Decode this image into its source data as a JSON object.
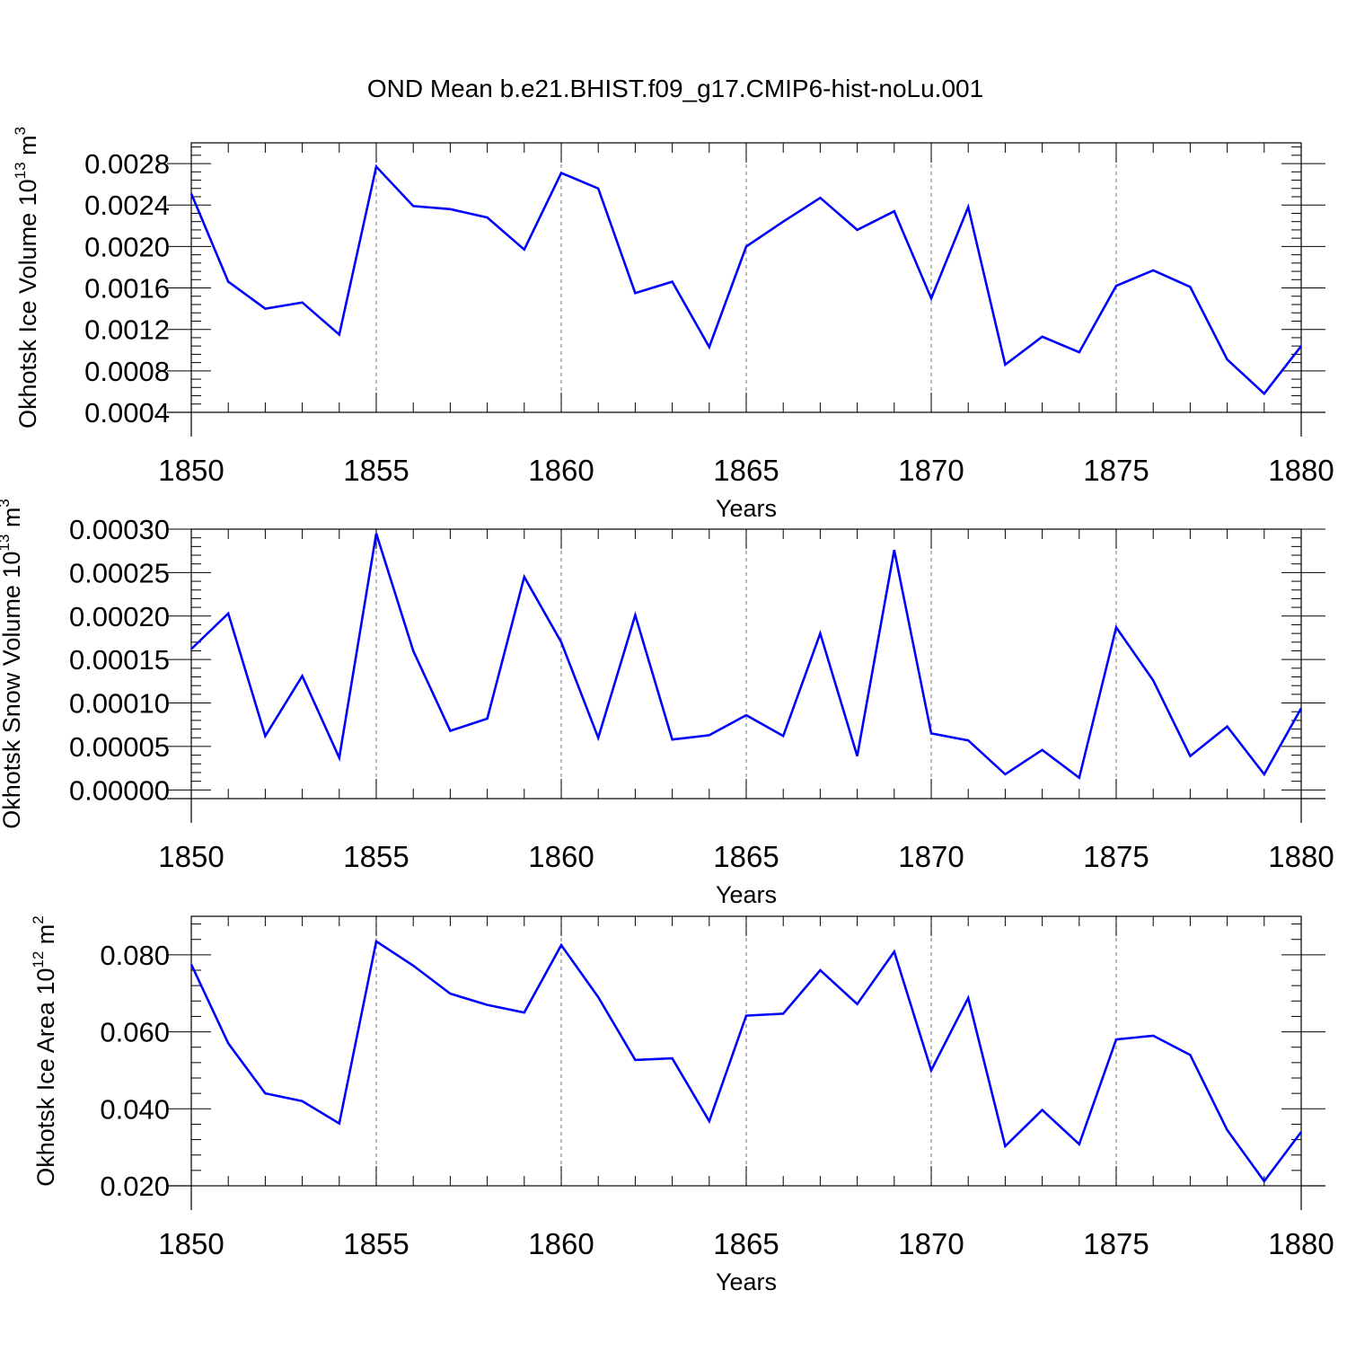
{
  "title": "OND Mean b.e21.BHIST.f09_g17.CMIP6-hist-noLu.001",
  "line_color": "#0000ff",
  "chart_data": [
    {
      "type": "line",
      "ylabel_main": "Okhotsk Ice Volume 10",
      "ylabel_exp": "13",
      "ylabel_unit": " m",
      "ylabel_unit_exp": "3",
      "xlabel": "Years",
      "xlim": [
        1850,
        1880
      ],
      "ylim": [
        0.0004,
        0.003
      ],
      "yticks": [
        0.0004,
        0.0008,
        0.0012,
        0.0016,
        0.002,
        0.0024,
        0.0028
      ],
      "ytick_labels": [
        "0.0004",
        "0.0008",
        "0.0012",
        "0.0016",
        "0.0020",
        "0.0024",
        "0.0028"
      ],
      "xticks": [
        1850,
        1855,
        1860,
        1865,
        1870,
        1875,
        1880
      ],
      "xtick_labels": [
        "1850",
        "1855",
        "1860",
        "1865",
        "1870",
        "1875",
        "1880"
      ],
      "x": [
        1850,
        1851,
        1852,
        1853,
        1854,
        1855,
        1856,
        1857,
        1858,
        1859,
        1860,
        1861,
        1862,
        1863,
        1864,
        1865,
        1866,
        1867,
        1868,
        1869,
        1870,
        1871,
        1872,
        1873,
        1874,
        1875,
        1876,
        1877,
        1878,
        1879,
        1880
      ],
      "values": [
        0.00251,
        0.00166,
        0.0014,
        0.00146,
        0.00115,
        0.00277,
        0.00239,
        0.00236,
        0.00228,
        0.00197,
        0.00271,
        0.00256,
        0.00155,
        0.00166,
        0.00103,
        0.002,
        0.00224,
        0.00247,
        0.00216,
        0.00234,
        0.0015,
        0.00238,
        0.00086,
        0.00113,
        0.00098,
        0.00162,
        0.00177,
        0.00161,
        0.00091,
        0.00058,
        0.00104
      ]
    },
    {
      "type": "line",
      "ylabel_main": "Okhotsk Snow Volume 10",
      "ylabel_exp": "13",
      "ylabel_unit": " m",
      "ylabel_unit_exp": "3",
      "xlabel": "Years",
      "xlim": [
        1850,
        1880
      ],
      "ylim": [
        -1e-05,
        0.0003
      ],
      "yticks": [
        0.0,
        5e-05,
        0.0001,
        0.00015,
        0.0002,
        0.00025,
        0.0003
      ],
      "ytick_labels": [
        "0.00000",
        "0.00005",
        "0.00010",
        "0.00015",
        "0.00020",
        "0.00025",
        "0.00030"
      ],
      "xticks": [
        1850,
        1855,
        1860,
        1865,
        1870,
        1875,
        1880
      ],
      "xtick_labels": [
        "1850",
        "1855",
        "1860",
        "1865",
        "1870",
        "1875",
        "1880"
      ],
      "x": [
        1850,
        1851,
        1852,
        1853,
        1854,
        1855,
        1856,
        1857,
        1858,
        1859,
        1860,
        1861,
        1862,
        1863,
        1864,
        1865,
        1866,
        1867,
        1868,
        1869,
        1870,
        1871,
        1872,
        1873,
        1874,
        1875,
        1876,
        1877,
        1878,
        1879,
        1880
      ],
      "values": [
        0.000162,
        0.000203,
        6.2e-05,
        0.000131,
        3.7e-05,
        0.000295,
        0.00016,
        6.8e-05,
        8.2e-05,
        0.000245,
        0.00017,
        6e-05,
        0.000201,
        5.8e-05,
        6.3e-05,
        8.6e-05,
        6.2e-05,
        0.00018,
        3.9e-05,
        0.000276,
        6.5e-05,
        5.7e-05,
        1.8e-05,
        4.6e-05,
        1.4e-05,
        0.000187,
        0.000126,
        3.9e-05,
        7.3e-05,
        1.8e-05,
        9.4e-05
      ]
    },
    {
      "type": "line",
      "ylabel_main": "Okhotsk Ice Area 10",
      "ylabel_exp": "12",
      "ylabel_unit": " m",
      "ylabel_unit_exp": "2",
      "xlabel": "Years",
      "xlim": [
        1850,
        1880
      ],
      "ylim": [
        0.02,
        0.09
      ],
      "yticks": [
        0.02,
        0.04,
        0.06,
        0.08
      ],
      "ytick_labels": [
        "0.020",
        "0.040",
        "0.060",
        "0.080"
      ],
      "xticks": [
        1850,
        1855,
        1860,
        1865,
        1870,
        1875,
        1880
      ],
      "xtick_labels": [
        "1850",
        "1855",
        "1860",
        "1865",
        "1870",
        "1875",
        "1880"
      ],
      "x": [
        1850,
        1851,
        1852,
        1853,
        1854,
        1855,
        1856,
        1857,
        1858,
        1859,
        1860,
        1861,
        1862,
        1863,
        1864,
        1865,
        1866,
        1867,
        1868,
        1869,
        1870,
        1871,
        1872,
        1873,
        1874,
        1875,
        1876,
        1877,
        1878,
        1879,
        1880
      ],
      "values": [
        0.0775,
        0.057,
        0.044,
        0.042,
        0.0362,
        0.0835,
        0.0772,
        0.0699,
        0.067,
        0.065,
        0.0825,
        0.069,
        0.0527,
        0.0531,
        0.0368,
        0.0642,
        0.0647,
        0.076,
        0.0672,
        0.0808,
        0.05,
        0.0688,
        0.0303,
        0.0397,
        0.0308,
        0.058,
        0.059,
        0.054,
        0.0345,
        0.0212,
        0.034
      ]
    }
  ]
}
